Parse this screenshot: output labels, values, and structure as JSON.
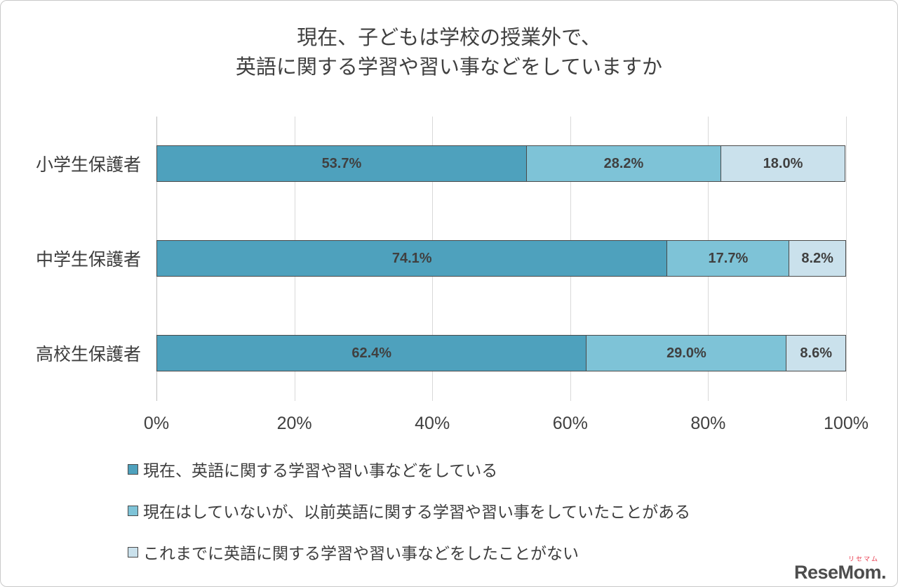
{
  "title": {
    "line1": "現在、子どもは学校の授業外で、",
    "line2": "英語に関する学習や習い事などをしていますか"
  },
  "logo": {
    "ruby": "リセマム",
    "text": "ReseMom."
  },
  "chart_data": {
    "type": "bar",
    "orientation": "horizontal-stacked",
    "title": "現在、子どもは学校の授業外で、英語に関する学習や習い事などをしていますか",
    "categories": [
      "小学生保護者",
      "中学生保護者",
      "高校生保護者"
    ],
    "series": [
      {
        "name": "現在、英語に関する学習や習い事などをしている",
        "color": "#4EA1BD",
        "values": [
          53.7,
          74.1,
          62.4
        ],
        "labels": [
          "53.7%",
          "74.1%",
          "62.4%"
        ]
      },
      {
        "name": "現在はしていないが、以前英語に関する学習や習い事をしていたことがある",
        "color": "#7EC3D7",
        "values": [
          28.2,
          17.7,
          29.0
        ],
        "labels": [
          "28.2%",
          "17.7%",
          "29.0%"
        ]
      },
      {
        "name": "これまでに英語に関する学習や習い事などをしたことがない",
        "color": "#CAE1EC",
        "values": [
          18.0,
          8.2,
          8.6
        ],
        "labels": [
          "18.0%",
          "8.2%",
          "8.6%"
        ]
      }
    ],
    "x_ticks": [
      "0%",
      "20%",
      "40%",
      "60%",
      "80%",
      "100%"
    ],
    "xlim": [
      0,
      100
    ],
    "grid": true,
    "legend_position": "bottom-left",
    "gridline_color": "#d9d9d9",
    "bar_border_color": "#4a4a4a",
    "value_label_color": "#404040"
  }
}
